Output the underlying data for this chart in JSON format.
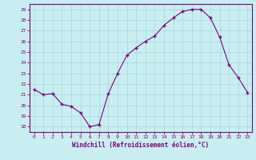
{
  "x": [
    0,
    1,
    2,
    3,
    4,
    5,
    6,
    7,
    8,
    9,
    10,
    11,
    12,
    13,
    14,
    15,
    16,
    17,
    18,
    19,
    20,
    21,
    22,
    23
  ],
  "y": [
    21.5,
    21.0,
    21.1,
    20.1,
    19.9,
    19.3,
    18.0,
    18.2,
    21.1,
    23.0,
    24.7,
    25.4,
    26.0,
    26.5,
    27.5,
    28.2,
    28.8,
    29.0,
    29.0,
    28.2,
    26.4,
    23.8,
    22.6,
    21.2
  ],
  "xlim": [
    -0.5,
    23.5
  ],
  "ylim": [
    17.5,
    29.5
  ],
  "yticks": [
    18,
    19,
    20,
    21,
    22,
    23,
    24,
    25,
    26,
    27,
    28,
    29
  ],
  "xticks": [
    0,
    1,
    2,
    3,
    4,
    5,
    6,
    7,
    8,
    9,
    10,
    11,
    12,
    13,
    14,
    15,
    16,
    17,
    18,
    19,
    20,
    21,
    22,
    23
  ],
  "xlabel": "Windchill (Refroidissement éolien,°C)",
  "line_color": "#800080",
  "marker": "+",
  "marker_color": "#800080",
  "bg_color": "#c8eef0",
  "grid_color": "#aadddd",
  "axis_color": "#800080",
  "tick_color": "#800080",
  "label_color": "#800080"
}
